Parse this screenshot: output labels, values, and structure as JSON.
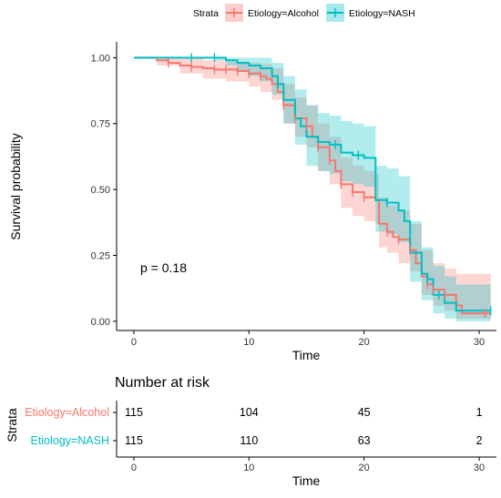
{
  "chart_data": {
    "type": "line",
    "subtype": "kaplan-meier",
    "xlabel": "Time",
    "ylabel": "Survival probability",
    "xlim": [
      -1.5,
      31.5
    ],
    "ylim": [
      -0.035,
      1.06
    ],
    "xticks": [
      0,
      10,
      20,
      30
    ],
    "yticks": [
      0,
      0.25,
      0.5,
      0.75,
      1
    ],
    "ytick_labels": [
      "0.00",
      "0.25",
      "0.50",
      "0.75",
      "1.00"
    ],
    "grid": false,
    "legend_title": "Strata",
    "legend_position": "top",
    "annotation": "p = 0.18",
    "series": [
      {
        "name": "Etiology=Alcohol",
        "color": "#F8766D",
        "fill": "#F8766D",
        "steps": [
          [
            0,
            1.0
          ],
          [
            1.5,
            1.0
          ],
          [
            2,
            0.99
          ],
          [
            3,
            0.98
          ],
          [
            4,
            0.97
          ],
          [
            5,
            0.965
          ],
          [
            6,
            0.96
          ],
          [
            7,
            0.955
          ],
          [
            9,
            0.95
          ],
          [
            10,
            0.94
          ],
          [
            11,
            0.93
          ],
          [
            11.5,
            0.92
          ],
          [
            12,
            0.9
          ],
          [
            12.5,
            0.87
          ],
          [
            13,
            0.82
          ],
          [
            14,
            0.77
          ],
          [
            15,
            0.74
          ],
          [
            15.5,
            0.7
          ],
          [
            16,
            0.66
          ],
          [
            17,
            0.61
          ],
          [
            17.5,
            0.57
          ],
          [
            18,
            0.52
          ],
          [
            19,
            0.49
          ],
          [
            20,
            0.47
          ],
          [
            21,
            0.46
          ],
          [
            21.3,
            0.37
          ],
          [
            22,
            0.34
          ],
          [
            22.5,
            0.32
          ],
          [
            23,
            0.31
          ],
          [
            24,
            0.27
          ],
          [
            24.5,
            0.22
          ],
          [
            25,
            0.17
          ],
          [
            25.5,
            0.14
          ],
          [
            26,
            0.12
          ],
          [
            27,
            0.1
          ],
          [
            28,
            0.06
          ],
          [
            28.5,
            0.03
          ],
          [
            31,
            0.03
          ]
        ],
        "lower": [
          [
            0,
            1.0
          ],
          [
            2,
            0.97
          ],
          [
            4,
            0.94
          ],
          [
            6,
            0.92
          ],
          [
            8,
            0.91
          ],
          [
            10,
            0.89
          ],
          [
            11,
            0.87
          ],
          [
            12,
            0.84
          ],
          [
            13,
            0.75
          ],
          [
            14,
            0.7
          ],
          [
            15,
            0.66
          ],
          [
            16,
            0.57
          ],
          [
            17,
            0.52
          ],
          [
            18,
            0.43
          ],
          [
            19,
            0.4
          ],
          [
            20,
            0.38
          ],
          [
            21,
            0.37
          ],
          [
            21.3,
            0.28
          ],
          [
            22,
            0.26
          ],
          [
            23,
            0.22
          ],
          [
            24,
            0.19
          ],
          [
            25,
            0.1
          ],
          [
            26,
            0.06
          ],
          [
            27,
            0.04
          ],
          [
            28,
            0.01
          ],
          [
            31,
            0.01
          ]
        ],
        "upper": [
          [
            0,
            1.0
          ],
          [
            2,
            1.0
          ],
          [
            4,
            1.0
          ],
          [
            6,
            0.99
          ],
          [
            8,
            0.985
          ],
          [
            10,
            0.98
          ],
          [
            11,
            0.975
          ],
          [
            12,
            0.96
          ],
          [
            13,
            0.9
          ],
          [
            14,
            0.85
          ],
          [
            15,
            0.82
          ],
          [
            16,
            0.75
          ],
          [
            17,
            0.7
          ],
          [
            18,
            0.62
          ],
          [
            19,
            0.59
          ],
          [
            20,
            0.57
          ],
          [
            21,
            0.56
          ],
          [
            21.3,
            0.47
          ],
          [
            22,
            0.44
          ],
          [
            23,
            0.42
          ],
          [
            24,
            0.37
          ],
          [
            25,
            0.27
          ],
          [
            26,
            0.22
          ],
          [
            27,
            0.2
          ],
          [
            28,
            0.18
          ],
          [
            31,
            0.18
          ]
        ],
        "censor_x": [
          3,
          5,
          7,
          8,
          9,
          10,
          11,
          13,
          14,
          15,
          16,
          17,
          18,
          19,
          20,
          22,
          23,
          24,
          25.5,
          26,
          27,
          30.5
        ]
      },
      {
        "name": "Etiology=NASH",
        "color": "#00BFC4",
        "fill": "#00BFC4",
        "steps": [
          [
            0,
            1.0
          ],
          [
            7,
            1.0
          ],
          [
            8,
            0.99
          ],
          [
            9,
            0.98
          ],
          [
            10,
            0.97
          ],
          [
            11,
            0.96
          ],
          [
            12,
            0.93
          ],
          [
            12.5,
            0.9
          ],
          [
            13,
            0.84
          ],
          [
            14,
            0.77
          ],
          [
            14.5,
            0.74
          ],
          [
            15,
            0.7
          ],
          [
            16,
            0.68
          ],
          [
            17,
            0.67
          ],
          [
            18,
            0.64
          ],
          [
            19,
            0.63
          ],
          [
            20,
            0.62
          ],
          [
            21,
            0.46
          ],
          [
            22,
            0.45
          ],
          [
            23,
            0.42
          ],
          [
            23.5,
            0.38
          ],
          [
            24,
            0.26
          ],
          [
            25,
            0.18
          ],
          [
            25.5,
            0.16
          ],
          [
            26,
            0.1
          ],
          [
            27,
            0.07
          ],
          [
            28,
            0.04
          ],
          [
            31,
            0.04
          ]
        ],
        "lower": [
          [
            0,
            1.0
          ],
          [
            7,
            0.99
          ],
          [
            8,
            0.97
          ],
          [
            9,
            0.95
          ],
          [
            10,
            0.93
          ],
          [
            11,
            0.91
          ],
          [
            12,
            0.86
          ],
          [
            13,
            0.75
          ],
          [
            14,
            0.67
          ],
          [
            15,
            0.59
          ],
          [
            16,
            0.57
          ],
          [
            17,
            0.56
          ],
          [
            18,
            0.53
          ],
          [
            19,
            0.52
          ],
          [
            20,
            0.51
          ],
          [
            21,
            0.34
          ],
          [
            22,
            0.33
          ],
          [
            23,
            0.3
          ],
          [
            24,
            0.15
          ],
          [
            25,
            0.08
          ],
          [
            26,
            0.03
          ],
          [
            27,
            0.01
          ],
          [
            28,
            0.0
          ],
          [
            31,
            0.0
          ]
        ],
        "upper": [
          [
            0,
            1.0
          ],
          [
            7,
            1.0
          ],
          [
            8,
            1.0
          ],
          [
            9,
            1.0
          ],
          [
            10,
            1.0
          ],
          [
            11,
            1.0
          ],
          [
            12,
            0.98
          ],
          [
            13,
            0.93
          ],
          [
            14,
            0.88
          ],
          [
            15,
            0.82
          ],
          [
            16,
            0.79
          ],
          [
            17,
            0.78
          ],
          [
            18,
            0.76
          ],
          [
            19,
            0.75
          ],
          [
            20,
            0.74
          ],
          [
            21,
            0.59
          ],
          [
            22,
            0.58
          ],
          [
            23,
            0.55
          ],
          [
            24,
            0.38
          ],
          [
            25,
            0.28
          ],
          [
            26,
            0.21
          ],
          [
            27,
            0.17
          ],
          [
            28,
            0.14
          ],
          [
            31,
            0.14
          ]
        ],
        "censor_x": [
          5,
          7,
          12.5,
          17.5,
          19.5,
          22,
          25.5,
          26.5,
          31
        ]
      }
    ],
    "risk_table": {
      "title": "Number at risk",
      "ylabel": "Strata",
      "xlabel": "Time",
      "times": [
        0,
        10,
        20,
        30
      ],
      "rows": [
        {
          "name": "Etiology=Alcohol",
          "color": "#F8766D",
          "counts": [
            "115",
            "104",
            "45",
            "1"
          ]
        },
        {
          "name": "Etiology=NASH",
          "color": "#00BFC4",
          "counts": [
            "115",
            "110",
            "63",
            "2"
          ]
        }
      ]
    }
  }
}
